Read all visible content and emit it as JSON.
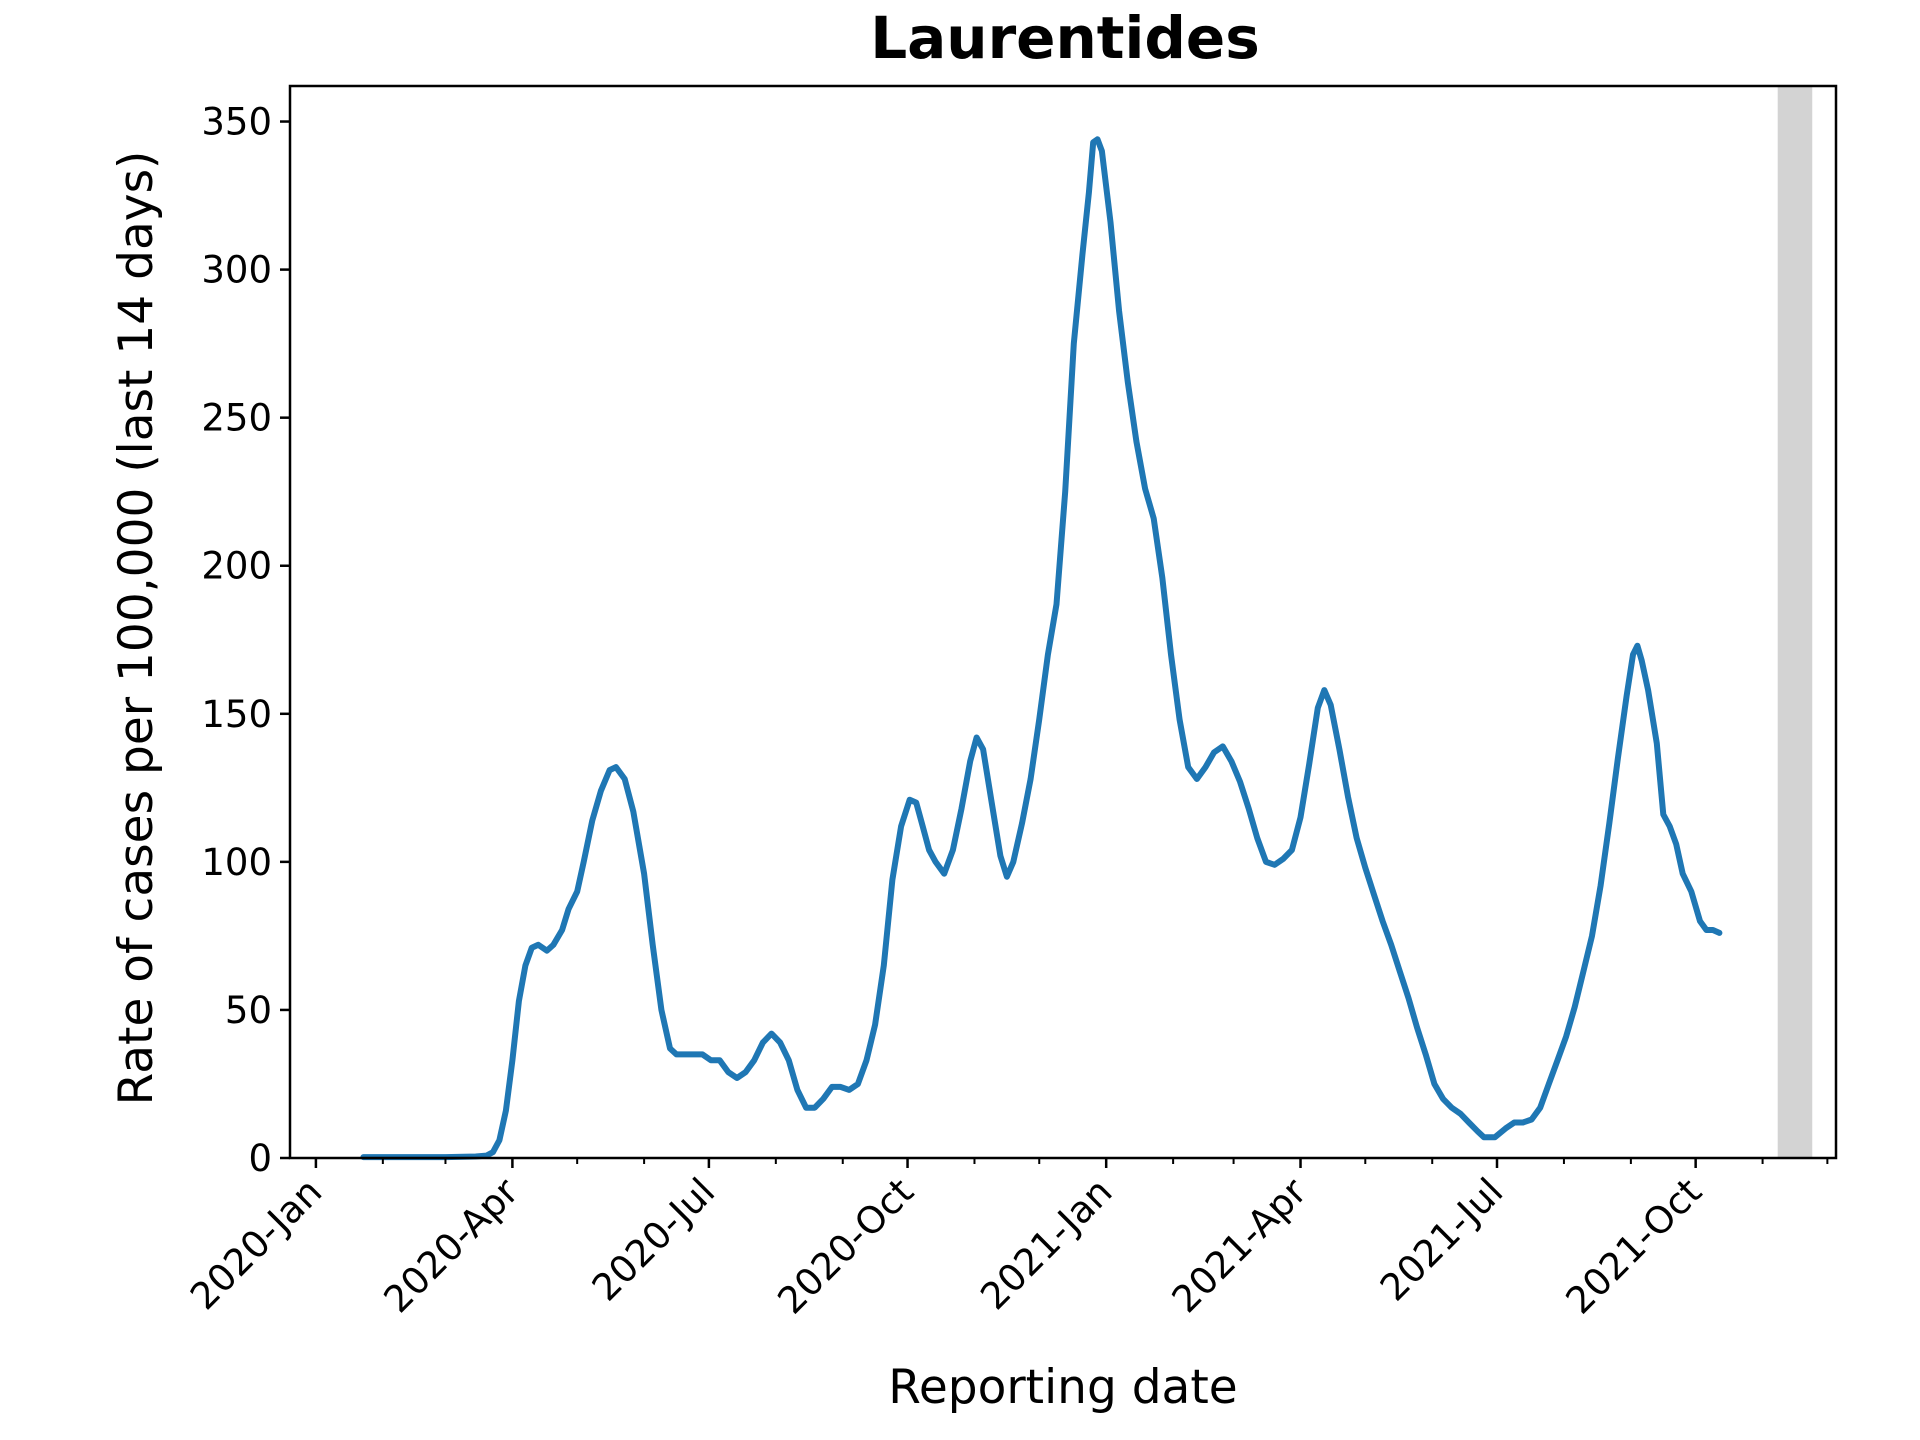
{
  "chart_data": {
    "type": "line",
    "title": "Laurentides",
    "xlabel": "Reporting date",
    "ylabel": "Rate of cases per 100,000 (last 14 days)",
    "xlim": [
      "2019-12-20",
      "2021-12-05"
    ],
    "ylim": [
      0,
      362
    ],
    "x_ticks": [
      {
        "date": "2020-01-01",
        "label": "2020-Jan"
      },
      {
        "date": "2020-04-01",
        "label": "2020-Apr"
      },
      {
        "date": "2020-07-01",
        "label": "2020-Jul"
      },
      {
        "date": "2020-10-01",
        "label": "2020-Oct"
      },
      {
        "date": "2021-01-01",
        "label": "2021-Jan"
      },
      {
        "date": "2021-04-01",
        "label": "2021-Apr"
      },
      {
        "date": "2021-07-01",
        "label": "2021-Jul"
      },
      {
        "date": "2021-10-01",
        "label": "2021-Oct"
      }
    ],
    "x_minor_ticks": [
      "2020-02-01",
      "2020-03-01",
      "2020-05-01",
      "2020-06-01",
      "2020-08-01",
      "2020-09-01",
      "2020-11-01",
      "2020-12-01",
      "2021-02-01",
      "2021-03-01",
      "2021-05-01",
      "2021-06-01",
      "2021-08-01",
      "2021-09-01",
      "2021-11-01",
      "2021-12-01"
    ],
    "y_ticks": [
      0,
      50,
      100,
      150,
      200,
      250,
      300,
      350
    ],
    "shaded_span": {
      "start": "2021-11-08",
      "end": "2021-11-24",
      "color": "#d3d3d3"
    },
    "grid": false,
    "series": [
      {
        "color": "#1f77b4",
        "points": [
          [
            "2020-01-23",
            0.3
          ],
          [
            "2020-02-15",
            0.3
          ],
          [
            "2020-03-01",
            0.3
          ],
          [
            "2020-03-15",
            0.5
          ],
          [
            "2020-03-20",
            0.8
          ],
          [
            "2020-03-23",
            2
          ],
          [
            "2020-03-26",
            6
          ],
          [
            "2020-03-29",
            16
          ],
          [
            "2020-04-01",
            33
          ],
          [
            "2020-04-04",
            53
          ],
          [
            "2020-04-07",
            65
          ],
          [
            "2020-04-10",
            71
          ],
          [
            "2020-04-13",
            72
          ],
          [
            "2020-04-17",
            70
          ],
          [
            "2020-04-20",
            72
          ],
          [
            "2020-04-24",
            77
          ],
          [
            "2020-04-27",
            84
          ],
          [
            "2020-05-01",
            90
          ],
          [
            "2020-05-04",
            100
          ],
          [
            "2020-05-08",
            114
          ],
          [
            "2020-05-12",
            124
          ],
          [
            "2020-05-16",
            131
          ],
          [
            "2020-05-19",
            132
          ],
          [
            "2020-05-23",
            128
          ],
          [
            "2020-05-27",
            117
          ],
          [
            "2020-06-01",
            96
          ],
          [
            "2020-06-05",
            72
          ],
          [
            "2020-06-09",
            50
          ],
          [
            "2020-06-13",
            37
          ],
          [
            "2020-06-16",
            35
          ],
          [
            "2020-06-20",
            35
          ],
          [
            "2020-06-24",
            35
          ],
          [
            "2020-06-28",
            35
          ],
          [
            "2020-07-02",
            33
          ],
          [
            "2020-07-06",
            33
          ],
          [
            "2020-07-10",
            29
          ],
          [
            "2020-07-14",
            27
          ],
          [
            "2020-07-18",
            29
          ],
          [
            "2020-07-22",
            33
          ],
          [
            "2020-07-26",
            39
          ],
          [
            "2020-07-30",
            42
          ],
          [
            "2020-08-03",
            39
          ],
          [
            "2020-08-07",
            33
          ],
          [
            "2020-08-11",
            23
          ],
          [
            "2020-08-15",
            17
          ],
          [
            "2020-08-19",
            17
          ],
          [
            "2020-08-23",
            20
          ],
          [
            "2020-08-27",
            24
          ],
          [
            "2020-08-31",
            24
          ],
          [
            "2020-09-04",
            23
          ],
          [
            "2020-09-08",
            25
          ],
          [
            "2020-09-12",
            33
          ],
          [
            "2020-09-16",
            45
          ],
          [
            "2020-09-20",
            65
          ],
          [
            "2020-09-24",
            94
          ],
          [
            "2020-09-28",
            112
          ],
          [
            "2020-10-02",
            121
          ],
          [
            "2020-10-05",
            120
          ],
          [
            "2020-10-08",
            112
          ],
          [
            "2020-10-11",
            104
          ],
          [
            "2020-10-14",
            100
          ],
          [
            "2020-10-18",
            96
          ],
          [
            "2020-10-22",
            104
          ],
          [
            "2020-10-26",
            118
          ],
          [
            "2020-10-30",
            134
          ],
          [
            "2020-11-02",
            142
          ],
          [
            "2020-11-05",
            138
          ],
          [
            "2020-11-09",
            120
          ],
          [
            "2020-11-13",
            102
          ],
          [
            "2020-11-16",
            95
          ],
          [
            "2020-11-19",
            100
          ],
          [
            "2020-11-23",
            113
          ],
          [
            "2020-11-27",
            128
          ],
          [
            "2020-12-01",
            148
          ],
          [
            "2020-12-05",
            170
          ],
          [
            "2020-12-09",
            187
          ],
          [
            "2020-12-13",
            225
          ],
          [
            "2020-12-17",
            275
          ],
          [
            "2020-12-21",
            305
          ],
          [
            "2020-12-24",
            326
          ],
          [
            "2020-12-26",
            343
          ],
          [
            "2020-12-28",
            344
          ],
          [
            "2020-12-30",
            340
          ],
          [
            "2021-01-03",
            316
          ],
          [
            "2021-01-07",
            286
          ],
          [
            "2021-01-11",
            262
          ],
          [
            "2021-01-15",
            242
          ],
          [
            "2021-01-19",
            226
          ],
          [
            "2021-01-23",
            216
          ],
          [
            "2021-01-27",
            196
          ],
          [
            "2021-01-31",
            170
          ],
          [
            "2021-02-04",
            148
          ],
          [
            "2021-02-08",
            132
          ],
          [
            "2021-02-12",
            128
          ],
          [
            "2021-02-16",
            132
          ],
          [
            "2021-02-20",
            137
          ],
          [
            "2021-02-24",
            139
          ],
          [
            "2021-02-28",
            134
          ],
          [
            "2021-03-04",
            127
          ],
          [
            "2021-03-08",
            118
          ],
          [
            "2021-03-12",
            108
          ],
          [
            "2021-03-16",
            100
          ],
          [
            "2021-03-20",
            99
          ],
          [
            "2021-03-24",
            101
          ],
          [
            "2021-03-28",
            104
          ],
          [
            "2021-04-01",
            115
          ],
          [
            "2021-04-05",
            133
          ],
          [
            "2021-04-09",
            152
          ],
          [
            "2021-04-12",
            158
          ],
          [
            "2021-04-15",
            153
          ],
          [
            "2021-04-19",
            138
          ],
          [
            "2021-04-23",
            122
          ],
          [
            "2021-04-27",
            108
          ],
          [
            "2021-05-01",
            98
          ],
          [
            "2021-05-05",
            89
          ],
          [
            "2021-05-09",
            80
          ],
          [
            "2021-05-13",
            72
          ],
          [
            "2021-05-17",
            63
          ],
          [
            "2021-05-21",
            54
          ],
          [
            "2021-05-25",
            44
          ],
          [
            "2021-05-29",
            35
          ],
          [
            "2021-06-02",
            25
          ],
          [
            "2021-06-06",
            20
          ],
          [
            "2021-06-10",
            17
          ],
          [
            "2021-06-14",
            15
          ],
          [
            "2021-06-18",
            12
          ],
          [
            "2021-06-22",
            9
          ],
          [
            "2021-06-25",
            7
          ],
          [
            "2021-06-30",
            7
          ],
          [
            "2021-07-05",
            10
          ],
          [
            "2021-07-09",
            12
          ],
          [
            "2021-07-13",
            12
          ],
          [
            "2021-07-17",
            13
          ],
          [
            "2021-07-21",
            17
          ],
          [
            "2021-07-25",
            25
          ],
          [
            "2021-07-29",
            33
          ],
          [
            "2021-08-02",
            41
          ],
          [
            "2021-08-06",
            51
          ],
          [
            "2021-08-10",
            63
          ],
          [
            "2021-08-14",
            75
          ],
          [
            "2021-08-18",
            92
          ],
          [
            "2021-08-22",
            113
          ],
          [
            "2021-08-26",
            135
          ],
          [
            "2021-08-30",
            156
          ],
          [
            "2021-09-02",
            170
          ],
          [
            "2021-09-04",
            173
          ],
          [
            "2021-09-06",
            168
          ],
          [
            "2021-09-09",
            158
          ],
          [
            "2021-09-13",
            140
          ],
          [
            "2021-09-16",
            116
          ],
          [
            "2021-09-19",
            112
          ],
          [
            "2021-09-22",
            106
          ],
          [
            "2021-09-25",
            96
          ],
          [
            "2021-09-29",
            90
          ],
          [
            "2021-10-03",
            80
          ],
          [
            "2021-10-06",
            77
          ],
          [
            "2021-10-09",
            77
          ],
          [
            "2021-10-12",
            76
          ]
        ]
      }
    ]
  }
}
